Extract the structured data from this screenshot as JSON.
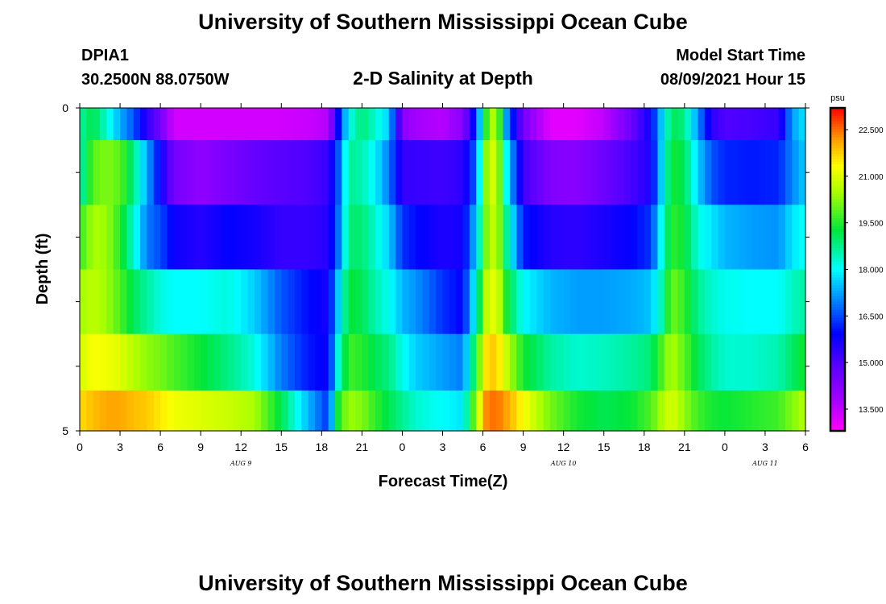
{
  "header": {
    "title": "University of Southern Mississippi Ocean Cube",
    "station": "DPIA1",
    "coords": "30.2500N  88.0750W",
    "subtitle": "2-D Salinity at Depth",
    "model_start_label": "Model Start Time",
    "model_start_value": "08/09/2021 Hour 15",
    "footer_title": "University of Southern Mississippi Ocean Cube"
  },
  "chart_data": {
    "type": "heatmap",
    "title": "2-D Salinity at Depth",
    "xlabel": "Forecast Time(Z)",
    "ylabel": "Depth (ft)",
    "x_tick_labels": [
      "0",
      "3",
      "6",
      "9",
      "12",
      "15",
      "18",
      "21",
      "0",
      "3",
      "6",
      "9",
      "12",
      "15",
      "18",
      "21",
      "0",
      "3",
      "6"
    ],
    "x_date_labels": [
      "AUG 9",
      "AUG 10",
      "AUG 11"
    ],
    "x_range_hours": [
      0,
      54
    ],
    "y_tick_labels": [
      "0",
      "5"
    ],
    "y_range_ft": [
      0,
      5
    ],
    "depth_levels_ft": [
      0.0,
      1.0,
      2.0,
      3.0,
      4.0,
      4.75
    ],
    "colorbar": {
      "unit": "psu",
      "vmin": 12.8,
      "vmax": 23.2,
      "ticks": [
        "22.500",
        "21.000",
        "19.500",
        "18.000",
        "16.500",
        "15.000",
        "13.500"
      ],
      "tick_values": [
        22.5,
        21.0,
        19.5,
        18.0,
        16.5,
        15.0,
        13.5
      ]
    },
    "salinity_psu": [
      {
        "depth_ft": 0.0,
        "times_h": [
          0,
          1,
          2,
          3,
          4,
          5,
          6,
          7,
          9,
          11,
          13,
          15,
          17,
          18.5,
          19.3,
          20,
          21,
          22,
          23,
          24,
          25,
          27,
          28.5,
          29.5,
          30.3,
          31,
          31.8,
          33,
          35,
          37,
          39,
          41,
          42.5,
          43.3,
          44,
          45,
          46,
          47,
          48,
          50,
          52,
          53,
          54
        ],
        "values": [
          18.6,
          19.2,
          18.3,
          17.3,
          16.6,
          15.4,
          14.5,
          13.3,
          13.3,
          13.3,
          13.3,
          13.3,
          13.4,
          13.6,
          16.1,
          18.1,
          18.9,
          18.3,
          17.6,
          14.2,
          13.8,
          13.6,
          14.2,
          16.4,
          19.8,
          20.9,
          16.9,
          14.5,
          13.1,
          13.1,
          13.5,
          14.6,
          15.8,
          17.6,
          19.1,
          18.8,
          17.1,
          15.4,
          15.0,
          15.1,
          15.3,
          17.2,
          17.8
        ]
      },
      {
        "depth_ft": 1.0,
        "times_h": [
          0,
          1,
          2,
          3,
          4,
          5,
          6,
          7,
          9,
          11,
          13,
          15,
          17,
          18.5,
          19.3,
          20,
          21,
          22,
          23,
          24,
          25,
          27,
          28.5,
          29.5,
          30.3,
          31,
          31.8,
          33,
          35,
          37,
          39,
          41,
          42.5,
          43.3,
          44,
          45,
          46,
          47,
          48,
          50,
          52,
          53,
          54
        ],
        "values": [
          18.4,
          19.9,
          20.2,
          19.9,
          18.8,
          17.3,
          15.8,
          14.5,
          14.1,
          14.4,
          14.7,
          14.9,
          15.0,
          15.3,
          16.7,
          18.7,
          18.5,
          17.9,
          16.9,
          15.3,
          15.3,
          15.2,
          15.4,
          16.8,
          20.5,
          21.1,
          17.8,
          15.2,
          14.3,
          14.2,
          14.6,
          15.1,
          15.6,
          17.7,
          19.4,
          19.1,
          17.6,
          16.6,
          16.2,
          16.1,
          16.2,
          17.0,
          17.6
        ]
      },
      {
        "depth_ft": 2.0,
        "times_h": [
          0,
          1,
          2,
          3,
          4,
          5,
          6,
          7,
          9,
          11,
          13,
          15,
          17,
          18.5,
          19.3,
          20,
          21,
          22,
          23,
          24,
          25,
          27,
          28.5,
          29.5,
          30.3,
          31,
          31.8,
          33,
          35,
          37,
          39,
          41,
          42.5,
          43.3,
          44,
          45,
          46,
          47,
          48,
          50,
          52,
          53,
          54
        ],
        "values": [
          19.6,
          20.5,
          20.4,
          19.5,
          18.3,
          16.9,
          16.5,
          15.8,
          15.5,
          15.9,
          15.7,
          15.3,
          15.3,
          15.5,
          16.9,
          18.9,
          18.9,
          18.3,
          17.6,
          16.3,
          16.0,
          15.6,
          15.7,
          17.6,
          20.3,
          20.9,
          18.5,
          16.1,
          15.5,
          15.4,
          15.6,
          15.9,
          16.3,
          18.1,
          19.6,
          19.3,
          18.2,
          17.8,
          17.4,
          17.2,
          17.1,
          17.8,
          18.1
        ]
      },
      {
        "depth_ft": 3.0,
        "times_h": [
          0,
          1,
          2,
          3,
          4,
          5,
          6,
          7,
          9,
          11,
          13,
          15,
          17,
          18.5,
          19.3,
          20,
          21,
          22,
          23,
          24,
          25,
          27,
          28.5,
          29.5,
          30.3,
          31,
          31.8,
          33,
          35,
          37,
          39,
          41,
          42.5,
          43.3,
          44,
          45,
          46,
          47,
          48,
          50,
          52,
          53,
          54
        ],
        "values": [
          20.4,
          20.7,
          20.4,
          19.8,
          19.1,
          18.6,
          18.2,
          18.0,
          18.0,
          18.2,
          17.6,
          16.6,
          16.0,
          15.7,
          17.7,
          19.3,
          19.1,
          18.5,
          18.1,
          17.4,
          17.1,
          16.3,
          15.9,
          18.3,
          20.8,
          21.2,
          19.3,
          18.0,
          17.4,
          17.2,
          17.2,
          17.3,
          17.5,
          18.5,
          20.1,
          19.6,
          18.7,
          18.3,
          18.1,
          18.0,
          18.0,
          18.4,
          18.6
        ]
      },
      {
        "depth_ft": 4.0,
        "times_h": [
          0,
          1,
          2,
          3,
          4,
          5,
          6,
          7,
          9,
          11,
          13,
          15,
          17,
          18.5,
          19.3,
          20,
          21,
          22,
          23,
          24,
          25,
          27,
          28.5,
          29.5,
          30.3,
          31,
          31.8,
          33,
          35,
          37,
          39,
          41,
          42.5,
          43.3,
          44,
          45,
          46,
          47,
          48,
          50,
          52,
          53,
          54
        ],
        "values": [
          20.9,
          21.3,
          21.2,
          21.0,
          20.6,
          20.3,
          20.1,
          19.8,
          19.3,
          18.8,
          18.2,
          16.9,
          16.1,
          15.8,
          18.4,
          19.7,
          19.5,
          19.1,
          18.8,
          18.1,
          17.6,
          17.2,
          16.9,
          19.5,
          21.7,
          21.8,
          20.7,
          19.4,
          18.6,
          18.3,
          18.4,
          18.6,
          18.9,
          19.8,
          20.6,
          19.9,
          19.1,
          18.6,
          18.3,
          18.3,
          18.5,
          19.0,
          19.4
        ]
      },
      {
        "depth_ft": 4.75,
        "times_h": [
          0,
          1,
          2,
          3,
          4,
          5,
          6,
          7,
          9,
          11,
          13,
          15,
          17,
          18.5,
          19.3,
          20,
          21,
          22,
          23,
          24,
          25,
          27,
          28.5,
          29.5,
          30.3,
          31,
          31.8,
          33,
          35,
          37,
          39,
          41,
          42.5,
          43.3,
          44,
          45,
          46,
          47,
          48,
          50,
          52,
          53,
          54
        ],
        "values": [
          21.6,
          21.9,
          22.1,
          22.1,
          21.9,
          21.8,
          21.5,
          21.2,
          21.0,
          20.8,
          20.5,
          19.1,
          17.4,
          16.3,
          19.6,
          20.4,
          20.2,
          19.6,
          19.1,
          18.7,
          18.3,
          18.0,
          17.8,
          20.5,
          22.4,
          22.5,
          22.1,
          21.3,
          20.1,
          19.4,
          19.1,
          19.3,
          19.8,
          20.5,
          21.0,
          20.3,
          19.7,
          19.4,
          19.3,
          19.5,
          19.7,
          20.2,
          20.6
        ]
      }
    ]
  }
}
